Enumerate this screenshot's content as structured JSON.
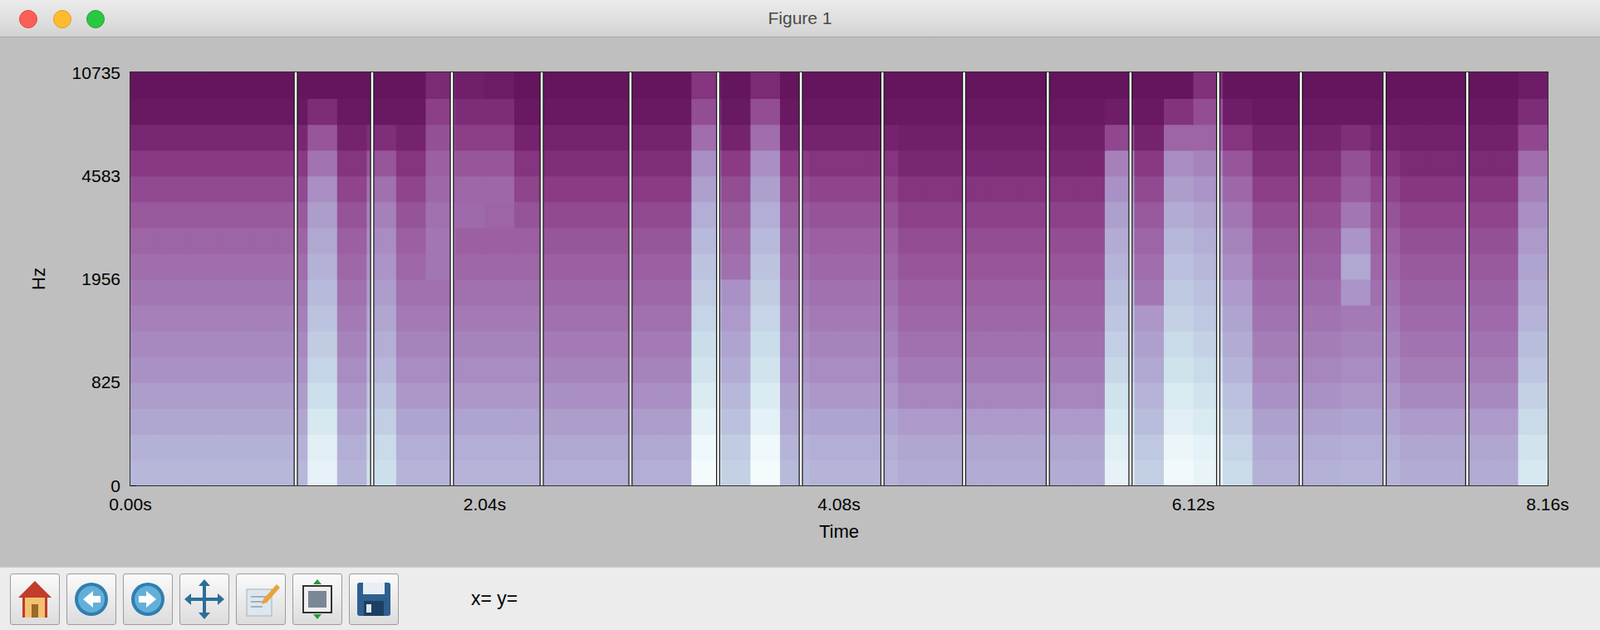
{
  "window": {
    "title": "Figure 1",
    "coords": "x= y="
  },
  "chart_data": {
    "type": "heatmap",
    "xlabel": "Time",
    "ylabel": "Hz",
    "xlim": [
      0,
      8.16
    ],
    "xticks": [
      {
        "value": 0,
        "label": "0.00s"
      },
      {
        "value": 2.04,
        "label": "2.04s"
      },
      {
        "value": 4.08,
        "label": "4.08s"
      },
      {
        "value": 6.12,
        "label": "6.12s"
      },
      {
        "value": 8.16,
        "label": "8.16s"
      }
    ],
    "y_categories": [
      "0",
      null,
      null,
      null,
      "825",
      null,
      null,
      null,
      "1956",
      null,
      null,
      null,
      "4583",
      null,
      null,
      null,
      "10735"
    ],
    "time_bins": [
      0,
      0.17,
      0.34,
      0.51,
      0.68,
      0.85,
      1.02,
      1.19,
      1.36,
      1.53,
      1.7,
      1.87,
      2.04,
      2.21,
      2.38,
      2.55,
      2.72,
      2.89,
      3.06,
      3.23,
      3.4,
      3.57,
      3.74,
      3.91,
      4.08,
      4.25,
      4.42,
      4.59,
      4.76,
      4.93,
      5.1,
      5.27,
      5.44,
      5.61,
      5.78,
      5.95,
      6.12,
      6.29,
      6.46,
      6.63,
      6.8,
      6.97,
      7.14,
      7.31,
      7.48,
      7.65,
      7.82,
      7.99,
      8.16
    ],
    "zlim": [
      0,
      100
    ],
    "cells": [
      [
        71,
        71,
        71,
        71,
        71,
        71,
        95,
        70,
        85,
        70,
        70,
        70,
        70,
        70,
        68,
        68,
        68,
        68,
        68,
        100,
        80,
        100,
        72,
        70,
        70,
        70,
        67,
        67,
        67,
        67,
        67,
        67,
        67,
        95,
        79,
        99,
        96,
        83,
        69,
        69,
        69,
        70,
        70,
        67,
        67,
        67,
        67,
        89
      ],
      [
        69,
        69,
        69,
        69,
        69,
        69,
        93,
        68,
        83,
        68,
        68,
        68,
        68,
        68,
        66,
        66,
        66,
        66,
        66,
        98,
        78,
        98,
        70,
        68,
        68,
        68,
        65,
        65,
        65,
        65,
        65,
        65,
        65,
        93,
        77,
        97,
        94,
        81,
        67,
        67,
        67,
        68,
        68,
        65,
        65,
        65,
        65,
        87
      ],
      [
        65,
        65,
        65,
        65,
        65,
        65,
        89,
        64,
        79,
        64,
        64,
        64,
        64,
        64,
        62,
        62,
        62,
        62,
        62,
        94,
        74,
        94,
        66,
        64,
        64,
        64,
        61,
        61,
        61,
        61,
        61,
        61,
        61,
        89,
        73,
        93,
        90,
        77,
        63,
        63,
        63,
        64,
        64,
        61,
        61,
        61,
        61,
        83
      ],
      [
        62,
        62,
        62,
        62,
        62,
        62,
        85,
        60,
        75,
        60,
        60,
        60,
        60,
        60,
        57,
        57,
        57,
        57,
        57,
        91,
        71,
        91,
        63,
        60,
        60,
        60,
        54,
        54,
        54,
        54,
        54,
        54,
        54,
        86,
        70,
        90,
        87,
        74,
        58,
        58,
        58,
        60,
        60,
        55,
        55,
        55,
        55,
        80
      ],
      [
        58,
        58,
        58,
        58,
        58,
        58,
        81,
        56,
        71,
        56,
        56,
        56,
        56,
        56,
        53,
        53,
        53,
        53,
        53,
        87,
        67,
        87,
        59,
        56,
        56,
        56,
        50,
        50,
        50,
        50,
        50,
        50,
        50,
        82,
        66,
        86,
        83,
        70,
        54,
        54,
        54,
        56,
        56,
        51,
        51,
        51,
        51,
        76
      ],
      [
        55,
        55,
        55,
        55,
        55,
        55,
        78,
        53,
        68,
        53,
        53,
        53,
        53,
        53,
        50,
        50,
        50,
        50,
        50,
        84,
        64,
        84,
        56,
        53,
        53,
        53,
        47,
        47,
        47,
        47,
        47,
        47,
        47,
        79,
        63,
        83,
        80,
        67,
        51,
        51,
        51,
        53,
        53,
        48,
        48,
        48,
        48,
        73
      ],
      [
        52,
        52,
        52,
        52,
        52,
        52,
        75,
        50,
        65,
        50,
        50,
        50,
        50,
        50,
        47,
        47,
        47,
        47,
        47,
        81,
        61,
        81,
        53,
        50,
        50,
        50,
        44,
        44,
        44,
        44,
        44,
        44,
        44,
        76,
        60,
        80,
        77,
        64,
        48,
        48,
        48,
        50,
        50,
        45,
        45,
        45,
        45,
        70
      ],
      [
        49,
        49,
        49,
        49,
        49,
        49,
        72,
        47,
        62,
        47,
        47,
        47,
        47,
        47,
        44,
        44,
        44,
        44,
        44,
        78,
        58,
        78,
        50,
        47,
        47,
        47,
        41,
        41,
        41,
        41,
        41,
        41,
        41,
        73,
        49,
        77,
        74,
        61,
        45,
        45,
        45,
        59,
        47,
        42,
        42,
        42,
        42,
        67
      ],
      [
        46,
        46,
        46,
        46,
        46,
        46,
        69,
        44,
        59,
        44,
        49,
        44,
        44,
        44,
        41,
        41,
        41,
        41,
        41,
        75,
        47,
        75,
        47,
        44,
        44,
        44,
        38,
        38,
        38,
        38,
        38,
        38,
        38,
        70,
        46,
        74,
        71,
        56,
        42,
        42,
        42,
        66,
        44,
        39,
        39,
        39,
        39,
        64
      ],
      [
        43,
        43,
        43,
        43,
        43,
        43,
        66,
        41,
        56,
        41,
        49,
        41,
        41,
        41,
        38,
        38,
        38,
        38,
        38,
        72,
        44,
        72,
        44,
        41,
        41,
        41,
        35,
        35,
        35,
        35,
        35,
        35,
        35,
        67,
        43,
        71,
        68,
        53,
        39,
        39,
        39,
        59,
        41,
        36,
        36,
        36,
        36,
        61
      ],
      [
        39,
        39,
        39,
        39,
        39,
        39,
        62,
        37,
        52,
        37,
        47,
        45,
        43,
        37,
        34,
        34,
        34,
        34,
        34,
        68,
        40,
        68,
        40,
        37,
        37,
        37,
        31,
        31,
        31,
        31,
        31,
        31,
        31,
        63,
        39,
        67,
        64,
        49,
        35,
        35,
        35,
        49,
        37,
        32,
        32,
        32,
        32,
        57
      ],
      [
        34,
        34,
        34,
        34,
        34,
        34,
        57,
        32,
        47,
        32,
        44,
        44,
        44,
        32,
        29,
        29,
        29,
        29,
        29,
        63,
        35,
        63,
        35,
        32,
        32,
        32,
        26,
        26,
        26,
        26,
        26,
        26,
        26,
        58,
        34,
        62,
        59,
        44,
        30,
        30,
        30,
        40,
        32,
        27,
        27,
        27,
        27,
        52
      ],
      [
        28,
        28,
        28,
        28,
        28,
        28,
        48,
        26,
        38,
        26,
        41,
        38,
        38,
        26,
        23,
        23,
        23,
        23,
        23,
        57,
        29,
        57,
        29,
        26,
        26,
        26,
        20,
        20,
        20,
        20,
        20,
        20,
        20,
        52,
        28,
        56,
        53,
        38,
        24,
        24,
        24,
        36,
        26,
        21,
        21,
        21,
        21,
        46
      ],
      [
        20,
        20,
        20,
        20,
        20,
        20,
        38,
        18,
        23,
        18,
        36,
        30,
        30,
        18,
        18,
        18,
        18,
        18,
        18,
        46,
        18,
        46,
        18,
        18,
        18,
        18,
        16,
        16,
        16,
        16,
        16,
        16,
        16,
        33,
        18,
        43,
        43,
        26,
        18,
        18,
        18,
        23,
        18,
        17,
        17,
        17,
        17,
        33
      ],
      [
        10,
        10,
        10,
        10,
        10,
        10,
        22,
        10,
        10,
        10,
        30,
        22,
        22,
        10,
        10,
        10,
        10,
        10,
        10,
        35,
        10,
        35,
        10,
        10,
        10,
        10,
        10,
        10,
        10,
        10,
        10,
        10,
        10,
        15,
        10,
        25,
        35,
        15,
        10,
        10,
        10,
        10,
        10,
        10,
        10,
        10,
        10,
        22
      ],
      [
        6,
        6,
        6,
        6,
        6,
        6,
        6,
        6,
        6,
        6,
        21,
        16,
        14,
        6,
        6,
        6,
        6,
        6,
        6,
        26,
        6,
        21,
        6,
        6,
        6,
        6,
        6,
        6,
        6,
        6,
        6,
        6,
        6,
        6,
        6,
        6,
        24,
        6,
        6,
        6,
        6,
        6,
        6,
        6,
        6,
        6,
        6,
        14
      ]
    ],
    "vlines": [
      0.952,
      1.392,
      1.851,
      2.368,
      2.879,
      3.384,
      3.86,
      4.33,
      4.8,
      5.282,
      5.758,
      6.263,
      6.739,
      7.221,
      7.697
    ],
    "grid": false
  }
}
